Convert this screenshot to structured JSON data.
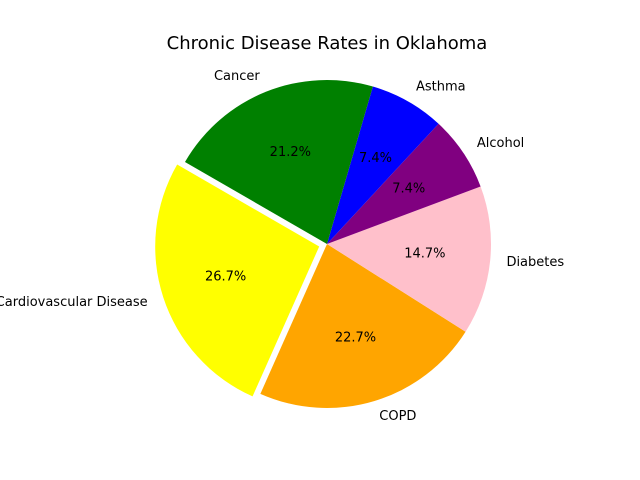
{
  "chart_data": {
    "type": "pie",
    "title": "Chronic Disease Rates in Oklahoma",
    "slices": [
      {
        "label": "Cardiovascular Disease",
        "value": 26.7,
        "pct_text": "26.7%",
        "color": "#ffff00",
        "exploded": true
      },
      {
        "label": "COPD",
        "value": 22.7,
        "pct_text": "22.7%",
        "color": "#ffa500",
        "exploded": false
      },
      {
        "label": "Diabetes",
        "value": 14.7,
        "pct_text": "14.7%",
        "color": "#ffc0cb",
        "exploded": false
      },
      {
        "label": "Alcohol",
        "value": 7.4,
        "pct_text": "7.4%",
        "color": "#800080",
        "exploded": false
      },
      {
        "label": "Asthma",
        "value": 7.4,
        "pct_text": "7.4%",
        "color": "#0000ff",
        "exploded": false
      },
      {
        "label": "Cancer",
        "value": 21.2,
        "pct_text": "21.2%",
        "color": "#008000",
        "exploded": false
      }
    ],
    "start_angle_deg": 150,
    "direction": "counterclockwise",
    "legend": "none"
  }
}
